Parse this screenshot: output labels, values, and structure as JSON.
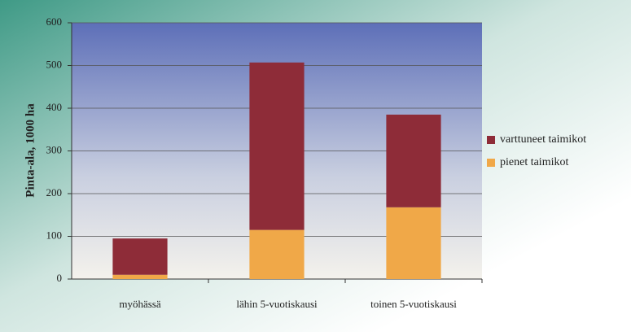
{
  "chart_data": {
    "type": "stacked_bar",
    "categories": [
      "myöhässä",
      "lähin 5-vuotiskausi",
      "toinen 5-vuotiskausi"
    ],
    "series": [
      {
        "name": "pienet taimikot",
        "color": "#f0a848",
        "values": [
          10,
          115,
          168
        ]
      },
      {
        "name": "varttuneet taimikot",
        "color": "#8e2c38",
        "values": [
          85,
          392,
          217
        ]
      }
    ],
    "y_label": "Pinta-ala, 1000 ha",
    "ylim": [
      0,
      600
    ],
    "yticks": [
      0,
      100,
      200,
      300,
      400,
      500,
      600
    ],
    "grid": true,
    "legend": "right"
  }
}
